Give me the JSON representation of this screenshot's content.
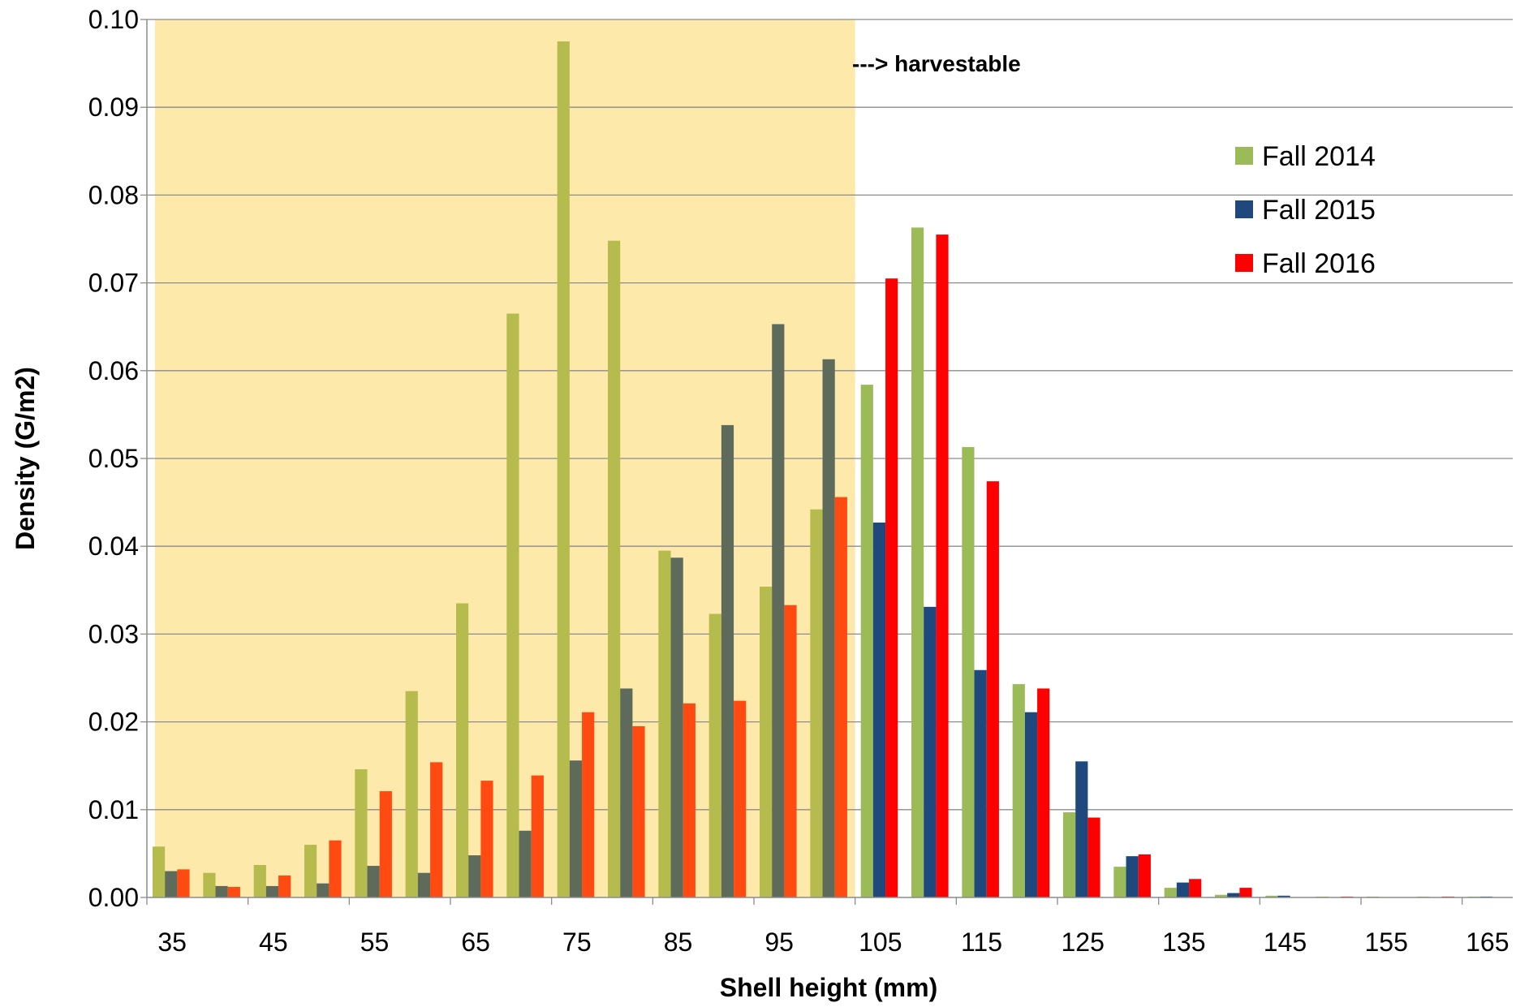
{
  "chart_data": {
    "type": "bar",
    "xlabel": "Shell height (mm)",
    "ylabel": "Density (G/m2)",
    "ylim": [
      0,
      0.1
    ],
    "yticks": [
      "0.00",
      "0.01",
      "0.02",
      "0.03",
      "0.04",
      "0.05",
      "0.06",
      "0.07",
      "0.08",
      "0.09",
      "0.10"
    ],
    "categories": [
      35,
      40,
      45,
      50,
      55,
      60,
      65,
      70,
      75,
      80,
      85,
      90,
      95,
      100,
      105,
      110,
      115,
      120,
      125,
      130,
      135,
      140,
      145,
      150,
      155,
      160,
      165
    ],
    "xtick_labels": [
      "35",
      "45",
      "55",
      "65",
      "75",
      "85",
      "95",
      "105",
      "115",
      "125",
      "135",
      "145",
      "155",
      "165"
    ],
    "grid": true,
    "legend_position": "top-right",
    "annotation": "---> harvestable",
    "shaded_region": {
      "x_from": 35,
      "x_to": 100,
      "color": "#fde9a9"
    },
    "series": [
      {
        "name": "Fall 2014",
        "color": "#9bbb59",
        "shaded_color": "#b5bb4c",
        "values": [
          0.0058,
          0.0028,
          0.0037,
          0.006,
          0.0146,
          0.0235,
          0.0335,
          0.0665,
          0.0975,
          0.0748,
          0.0395,
          0.0323,
          0.0354,
          0.0442,
          0.0584,
          0.0763,
          0.0513,
          0.0243,
          0.0097,
          0.0035,
          0.0011,
          0.0003,
          0.0002,
          0.0001,
          0.0001,
          0.0001,
          0.0001
        ]
      },
      {
        "name": "Fall 2015",
        "color": "#1f497d",
        "shaded_color": "#5e6b5a",
        "values": [
          0.003,
          0.0013,
          0.0013,
          0.0016,
          0.0036,
          0.0028,
          0.0048,
          0.0076,
          0.0156,
          0.0238,
          0.0387,
          0.0538,
          0.0653,
          0.0613,
          0.0427,
          0.0331,
          0.0259,
          0.0211,
          0.0155,
          0.0047,
          0.0017,
          0.0005,
          0.0002,
          0.0,
          0.0,
          0.0,
          0.0001
        ]
      },
      {
        "name": "Fall 2016",
        "color": "#ff0000",
        "shaded_color": "#ff4a12",
        "values": [
          0.0032,
          0.0012,
          0.0025,
          0.0065,
          0.0121,
          0.0154,
          0.0133,
          0.0139,
          0.0211,
          0.0195,
          0.0221,
          0.0224,
          0.0333,
          0.0456,
          0.0705,
          0.0755,
          0.0474,
          0.0238,
          0.0091,
          0.0049,
          0.0021,
          0.0011,
          0.0,
          0.0001,
          0.0,
          0.0001,
          0.0
        ]
      }
    ]
  }
}
